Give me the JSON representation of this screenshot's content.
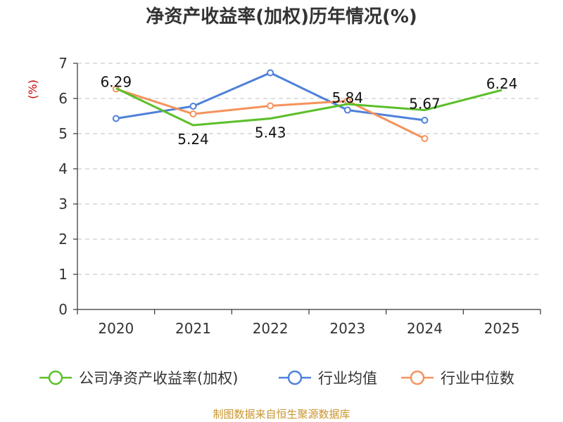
{
  "chart_data": {
    "type": "line",
    "title": "净资产收益率(加权)历年情况(%)",
    "ylabel": "(%)",
    "xlabel": "",
    "categories": [
      "2020",
      "2021",
      "2022",
      "2023",
      "2024",
      "2025"
    ],
    "ylim": [
      0,
      7
    ],
    "yticks": [
      0,
      1,
      2,
      3,
      4,
      5,
      6,
      7
    ],
    "grid": true,
    "legend_position": "bottom",
    "series": [
      {
        "name": "公司净资产收益率(加权)",
        "color": "#5cbf2a",
        "values": [
          6.29,
          5.24,
          5.43,
          5.84,
          5.67,
          6.24
        ],
        "labels": [
          "6.29",
          "5.24",
          "5.43",
          "5.84",
          "5.67",
          "6.24"
        ],
        "show_markers": false
      },
      {
        "name": "行业均值",
        "color": "#4f81d9",
        "values": [
          5.43,
          5.78,
          6.73,
          5.67,
          5.38,
          null
        ],
        "show_markers": true
      },
      {
        "name": "行业中位数",
        "color": "#f5925b",
        "values": [
          6.27,
          5.56,
          5.79,
          5.93,
          4.86,
          null
        ],
        "show_markers": true
      }
    ],
    "source": "制图数据来自恒生聚源数据库"
  }
}
